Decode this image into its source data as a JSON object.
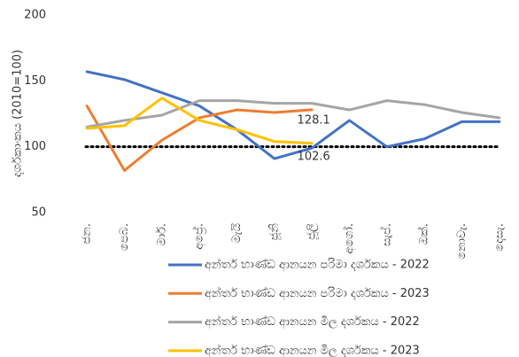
{
  "chart_data": {
    "type": "line",
    "y_label": "දර්ශකාංකය (2010=100)",
    "categories": [
      "ජන.",
      "පෙබ.",
      "මාර්.",
      "අප්‍රේ.",
      "මැයි",
      "ජූනි",
      "ජූලි",
      "අගෝ.",
      "සැප්.",
      "ඔක්.",
      "නොවැ.",
      "දෙසැ."
    ],
    "series": [
      {
        "name": "අන්තර් භාණ්ඩ ආනයන පරිමා දර්ශකය - 2022",
        "color": "#4472c4",
        "values": [
          157,
          151,
          141,
          131,
          113,
          91,
          99,
          120,
          100,
          106,
          119,
          119
        ]
      },
      {
        "name": "අන්තර් භාණ්ඩ ආනයන පරිමා දර්ශකය - 2023",
        "color": "#ed7d31",
        "values": [
          131,
          82,
          105,
          122,
          128,
          126,
          128.1,
          null,
          null,
          null,
          null,
          null
        ],
        "label_last": true
      },
      {
        "name": "අන්තර් භාණ්ඩ ආනයන මිල දර්ශකය - 2022",
        "color": "#a5a5a5",
        "values": [
          115,
          120,
          124,
          135,
          135,
          133,
          133,
          128,
          135,
          132,
          126,
          122
        ]
      },
      {
        "name": "අන්තර් භාණ්ඩ ආනයන මිල දර්ශකය - 2023",
        "color": "#ffc000",
        "values": [
          114,
          116,
          137,
          120,
          113,
          104,
          102.6,
          null,
          null,
          null,
          null,
          null
        ],
        "label_last": true
      }
    ],
    "reference_line": 100,
    "ylim": [
      50,
      200
    ],
    "yticks": [
      50,
      100,
      150,
      200
    ],
    "grid": false,
    "legend": "bottom"
  }
}
